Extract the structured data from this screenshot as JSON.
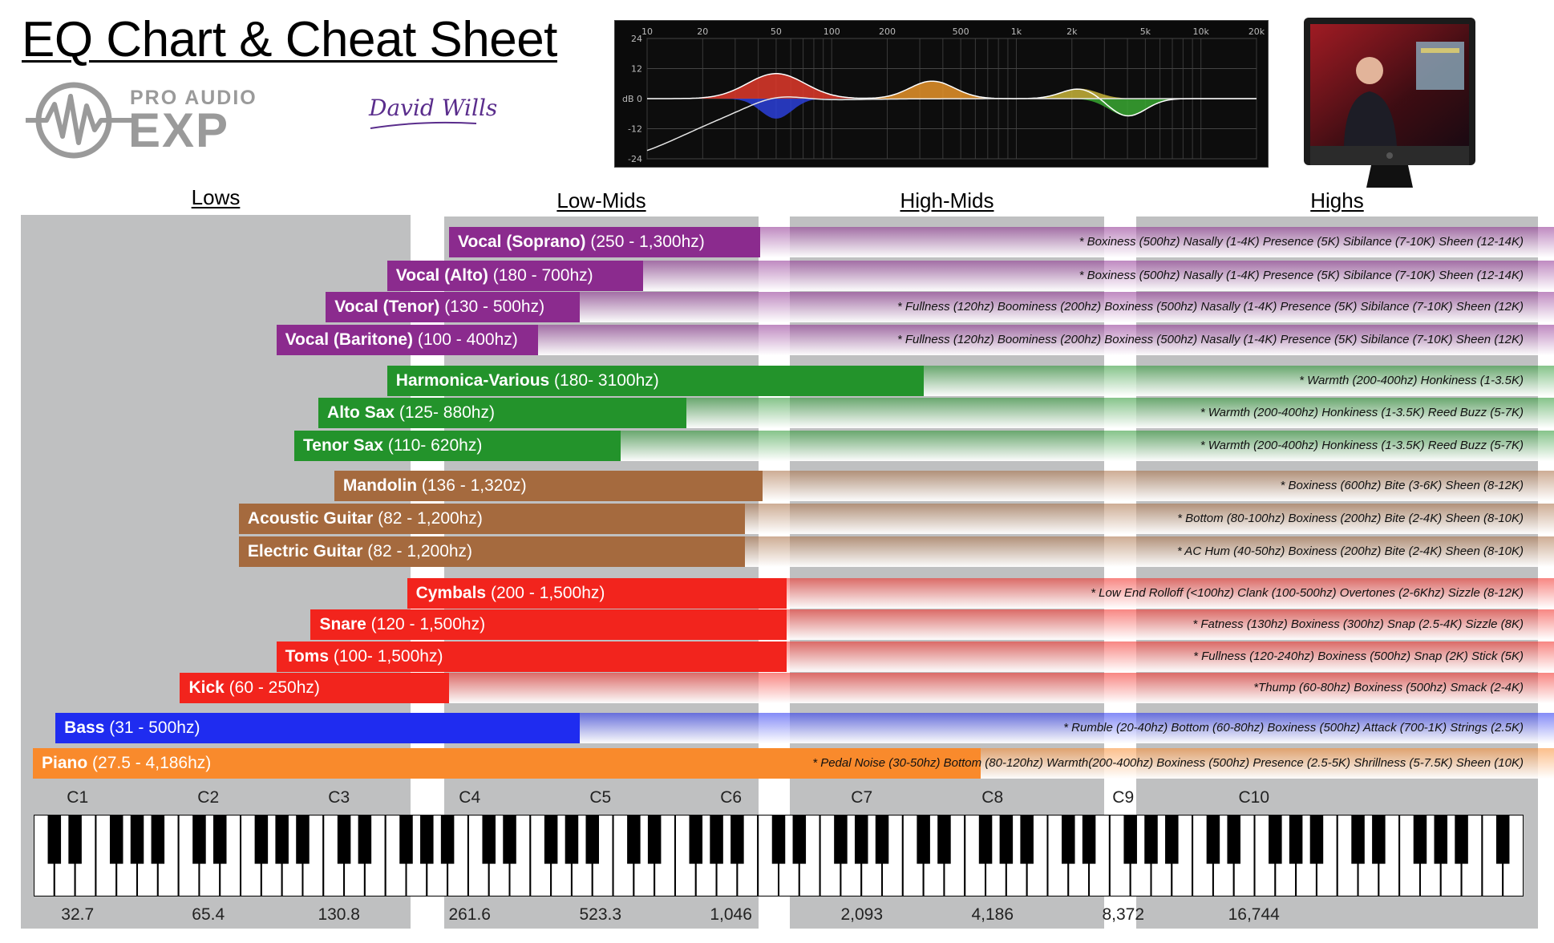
{
  "title": "EQ Chart & Cheat Sheet",
  "logo": {
    "line1": "PRO AUDIO",
    "line2": "EXP",
    "icon": "waveform-circle-icon"
  },
  "signature": "David Wills",
  "eq_curve": {
    "db_ticks": [
      "24",
      "12",
      "dB 0",
      "-12",
      "-24"
    ],
    "freq_ticks": [
      "10",
      "20",
      "50",
      "100",
      "200",
      "500",
      "1k",
      "2k",
      "5k",
      "10k",
      "20k"
    ]
  },
  "video_thumbnail": {
    "icon": "presenter-monitor-icon"
  },
  "chart_data": {
    "type": "bar",
    "x_scale": "log",
    "xunit": "hz",
    "bands": [
      {
        "label": "Lows",
        "start": 20,
        "end": 200
      },
      {
        "label": "Low-Mids",
        "start": 250,
        "end": 1046
      },
      {
        "label": "High-Mids",
        "start": 1200,
        "end": 4186
      },
      {
        "label": "Highs",
        "start": 6000,
        "end": 20000
      }
    ],
    "categories": [
      "Vocal (Soprano)",
      "Vocal (Alto)",
      "Vocal (Tenor)",
      "Vocal (Baritone)",
      "Harmonica-Various",
      "Alto Sax",
      "Tenor Sax",
      "Mandolin",
      "Acoustic Guitar",
      "Electric Guitar",
      "Cymbals",
      "Snare",
      "Toms",
      "Kick",
      "Bass",
      "Piano"
    ],
    "instruments": [
      {
        "name": "Vocal (Soprano)",
        "range": "(250 - 1,300hz)",
        "low": 250,
        "high": 1300,
        "color": "#8b2b8e",
        "group": "vocals",
        "notes": "* Boxiness (500hz)  Nasally (1-4K)  Presence (5K)  Sibilance (7-10K)  Sheen (12-14K)"
      },
      {
        "name": "Vocal (Alto)",
        "range": "(180 - 700hz)",
        "low": 180,
        "high": 700,
        "color": "#8b2b8e",
        "group": "vocals",
        "notes": "* Boxiness (500hz)  Nasally (1-4K)  Presence (5K)  Sibilance (7-10K)  Sheen (12-14K)"
      },
      {
        "name": "Vocal (Tenor)",
        "range": "(130 - 500hz)",
        "low": 130,
        "high": 500,
        "color": "#8b2b8e",
        "group": "vocals",
        "notes": "* Fullness (120hz)  Boominess (200hz)  Boxiness (500hz)  Nasally (1-4K)  Presence (5K)  Sibilance (7-10K)  Sheen (12K)"
      },
      {
        "name": "Vocal (Baritone)",
        "range": "(100 - 400hz)",
        "low": 100,
        "high": 400,
        "color": "#8b2b8e",
        "group": "vocals",
        "notes": "* Fullness (120hz)  Boominess (200hz)  Boxiness (500hz)  Nasally (1-4K)  Presence (5K)  Sibilance (7-10K)  Sheen (12K)"
      },
      {
        "name": "Harmonica-Various",
        "range": "(180- 3100hz)",
        "low": 180,
        "high": 3100,
        "color": "#23932b",
        "group": "winds",
        "notes": "* Warmth (200-400hz)  Honkiness (1-3.5K)"
      },
      {
        "name": "Alto Sax",
        "range": "(125- 880hz)",
        "low": 125,
        "high": 880,
        "color": "#23932b",
        "group": "winds",
        "notes": "* Warmth (200-400hz)  Honkiness (1-3.5K)  Reed Buzz (5-7K)"
      },
      {
        "name": "Tenor Sax",
        "range": "(110- 620hz)",
        "low": 110,
        "high": 620,
        "color": "#23932b",
        "group": "winds",
        "notes": "* Warmth (200-400hz)  Honkiness (1-3.5K)  Reed Buzz (5-7K)"
      },
      {
        "name": "Mandolin",
        "range": "(136 - 1,320z)",
        "low": 136,
        "high": 1320,
        "color": "#a56a3e",
        "group": "strings",
        "notes": "* Boxiness (600hz)  Bite (3-6K)  Sheen (8-12K)"
      },
      {
        "name": "Acoustic Guitar",
        "range": "(82 - 1,200hz)",
        "low": 82,
        "high": 1200,
        "color": "#a56a3e",
        "group": "strings",
        "notes": "* Bottom (80-100hz)  Boxiness (200hz)  Bite (2-4K)  Sheen (8-10K)"
      },
      {
        "name": "Electric Guitar",
        "range": "(82 - 1,200hz)",
        "low": 82,
        "high": 1200,
        "color": "#a56a3e",
        "group": "strings",
        "notes": "* AC Hum (40-50hz)  Boxiness (200hz)  Bite (2-4K)  Sheen (8-10K)"
      },
      {
        "name": "Cymbals",
        "range": "(200 - 1,500hz)",
        "low": 200,
        "high": 1500,
        "color": "#f2241d",
        "group": "drums",
        "notes": "* Low End Rolloff (<100hz)  Clank (100-500hz)  Overtones (2-6Khz)  Sizzle (8-12K)"
      },
      {
        "name": "Snare",
        "range": "(120 - 1,500hz)",
        "low": 120,
        "high": 1500,
        "color": "#f2241d",
        "group": "drums",
        "notes": "* Fatness (130hz)  Boxiness (300hz)  Snap (2.5-4K)  Sizzle (8K)"
      },
      {
        "name": "Toms",
        "range": "(100- 1,500hz)",
        "low": 100,
        "high": 1500,
        "color": "#f2241d",
        "group": "drums",
        "notes": "* Fullness (120-240hz)  Boxiness (500hz)  Snap (2K)  Stick (5K)"
      },
      {
        "name": "Kick",
        "range": "(60 - 250hz)",
        "low": 60,
        "high": 250,
        "color": "#f2241d",
        "group": "drums",
        "notes": "*Thump (60-80hz)  Boxiness (500hz)  Smack (2-4K)"
      },
      {
        "name": "Bass",
        "range": "(31 - 500hz)",
        "low": 31,
        "high": 500,
        "color": "#1f2cf0",
        "group": "bass",
        "notes": "* Rumble (20-40hz)  Bottom (60-80hz) Boxiness (500hz)  Attack (700-1K)  Strings (2.5K)"
      },
      {
        "name": "Piano",
        "range": "(27.5 - 4,186hz)",
        "low": 27.5,
        "high": 4186,
        "color": "#f98a2c",
        "group": "keys",
        "notes": "* Pedal Noise (30-50hz)  Bottom (80-120hz)  Warmth(200-400hz)  Boxiness (500hz)  Presence (2.5-5K)  Shrillness (5-7.5K)  Sheen (10K)"
      }
    ],
    "octaves": [
      {
        "label": "C1",
        "freq": "32.7",
        "hz": 32.7
      },
      {
        "label": "C2",
        "freq": "65.4",
        "hz": 65.4
      },
      {
        "label": "C3",
        "freq": "130.8",
        "hz": 130.8
      },
      {
        "label": "C4",
        "freq": "261.6",
        "hz": 261.6
      },
      {
        "label": "C5",
        "freq": "523.3",
        "hz": 523.3
      },
      {
        "label": "C6",
        "freq": "1,046",
        "hz": 1046
      },
      {
        "label": "C7",
        "freq": "2,093",
        "hz": 2093
      },
      {
        "label": "C8",
        "freq": "4,186",
        "hz": 4186
      },
      {
        "label": "C9",
        "freq": "8,372",
        "hz": 8372
      },
      {
        "label": "C10",
        "freq": "16,744",
        "hz": 16744
      }
    ]
  }
}
